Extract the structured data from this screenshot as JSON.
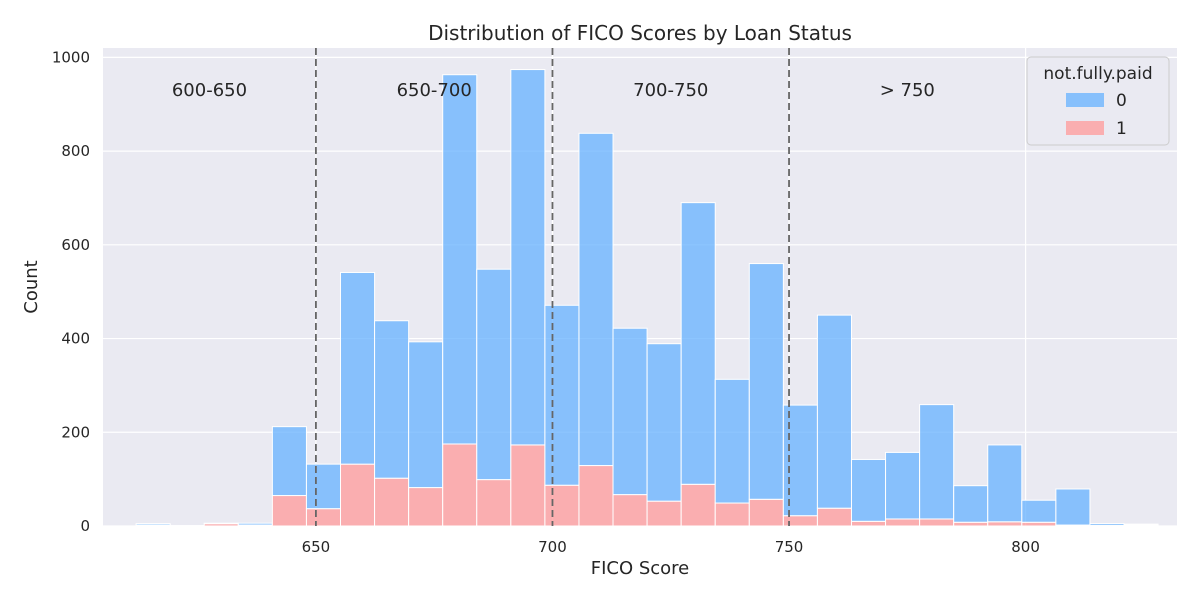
{
  "chart_data": {
    "type": "bar",
    "stacked": true,
    "title": "Distribution of FICO Scores by Loan Status",
    "xlabel": "FICO Score",
    "ylabel": "Count",
    "xlim": [
      605,
      832
    ],
    "ylim": [
      0,
      1020
    ],
    "x_ticks": [
      650,
      700,
      750,
      800
    ],
    "y_ticks": [
      0,
      200,
      400,
      600,
      800,
      1000
    ],
    "grid": true,
    "bin_edges": [
      612,
      619.2,
      626.4,
      633.6,
      640.8,
      648,
      655.2,
      662.4,
      669.6,
      676.8,
      684,
      691.2,
      698.4,
      705.6,
      712.8,
      720,
      727.2,
      734.4,
      741.6,
      748.8,
      756,
      763.2,
      770.4,
      777.6,
      784.8,
      792,
      799.2,
      806.4,
      813.6,
      820.8,
      828
    ],
    "series": [
      {
        "name": "0",
        "color": "#66b2ff",
        "values": [
          3,
          0,
          1,
          4,
          147,
          95,
          409,
          336,
          311,
          788,
          449,
          801,
          384,
          709,
          355,
          336,
          601,
          264,
          503,
          236,
          412,
          132,
          142,
          244,
          78,
          164,
          47,
          77,
          4,
          2
        ]
      },
      {
        "name": "1",
        "color": "#ff9999",
        "values": [
          2,
          1,
          5,
          2,
          65,
          37,
          132,
          102,
          82,
          175,
          99,
          173,
          87,
          129,
          67,
          53,
          89,
          49,
          57,
          22,
          38,
          10,
          15,
          15,
          8,
          9,
          8,
          2,
          1,
          2
        ]
      }
    ],
    "cutoffs": [
      650,
      700,
      750
    ],
    "region_labels": [
      "600-650",
      "650-700",
      "700-750",
      "> 750"
    ],
    "legend": {
      "title": "not.fully.paid",
      "position": "top-right"
    }
  }
}
